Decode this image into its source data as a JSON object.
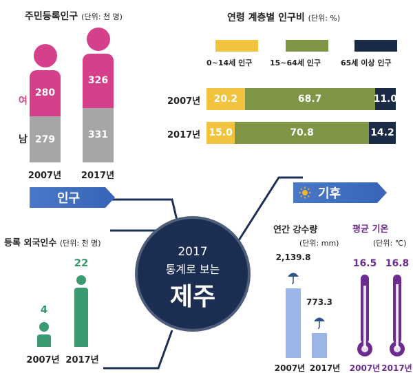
{
  "population": {
    "title": "주민등록인구",
    "unit": "(단위: 천 명)",
    "female_label": "여",
    "male_label": "남",
    "years": [
      "2007년",
      "2017년"
    ],
    "female": [
      280,
      326
    ],
    "male": [
      279,
      331
    ]
  },
  "age_ratio": {
    "title": "연령 계층별 인구비",
    "unit": "(단위: %)",
    "legend": [
      "0~14세 인구",
      "15~64세 인구",
      "65세 이상 인구"
    ],
    "colors": [
      "#f2c33f",
      "#7e9545",
      "#1b2a45"
    ],
    "rows": [
      {
        "year": "2007년",
        "values": [
          "20.2",
          "68.7",
          "11.0"
        ]
      },
      {
        "year": "2017년",
        "values": [
          "15.0",
          "70.8",
          "14.2"
        ]
      }
    ]
  },
  "foreign": {
    "title": "등록 외국인수",
    "unit": "(단위: 천 명)",
    "years": [
      "2007년",
      "2017년"
    ],
    "values": [
      "4",
      "22"
    ]
  },
  "center": {
    "line1": "2017",
    "line2": "통계로 보는",
    "line3": "제주"
  },
  "banners": {
    "population": "인구",
    "climate": "기후"
  },
  "rainfall": {
    "title": "연간 강수량",
    "unit": "(단위: mm)",
    "years": [
      "2007년",
      "2017년"
    ],
    "values": [
      "2,139.8",
      "773.3"
    ]
  },
  "temperature": {
    "title": "평균 기온",
    "unit": "(단위: ℃)",
    "years": [
      "2007년",
      "2017년"
    ],
    "values": [
      "16.5",
      "16.8"
    ]
  },
  "chart_data": [
    {
      "type": "bar",
      "title": "주민등록인구",
      "unit": "(단위: 천 명)",
      "categories": [
        "2007년",
        "2017년"
      ],
      "series": [
        {
          "name": "여",
          "values": [
            280,
            326
          ]
        },
        {
          "name": "남",
          "values": [
            279,
            331
          ]
        }
      ]
    },
    {
      "type": "bar",
      "title": "연령 계층별 인구비",
      "unit": "(단위: %)",
      "categories": [
        "2007년",
        "2017년"
      ],
      "series": [
        {
          "name": "0~14세 인구",
          "values": [
            20.2,
            15.0
          ]
        },
        {
          "name": "15~64세 인구",
          "values": [
            68.7,
            70.8
          ]
        },
        {
          "name": "65세 이상 인구",
          "values": [
            11.0,
            14.2
          ]
        }
      ]
    },
    {
      "type": "bar",
      "title": "등록 외국인수",
      "unit": "(단위: 천 명)",
      "categories": [
        "2007년",
        "2017년"
      ],
      "values": [
        4,
        22
      ]
    },
    {
      "type": "bar",
      "title": "연간 강수량",
      "unit": "(단위: mm)",
      "categories": [
        "2007년",
        "2017년"
      ],
      "values": [
        2139.8,
        773.3
      ]
    },
    {
      "type": "bar",
      "title": "평균 기온",
      "unit": "(단위: ℃)",
      "categories": [
        "2007년",
        "2017년"
      ],
      "values": [
        16.5,
        16.8
      ]
    }
  ]
}
